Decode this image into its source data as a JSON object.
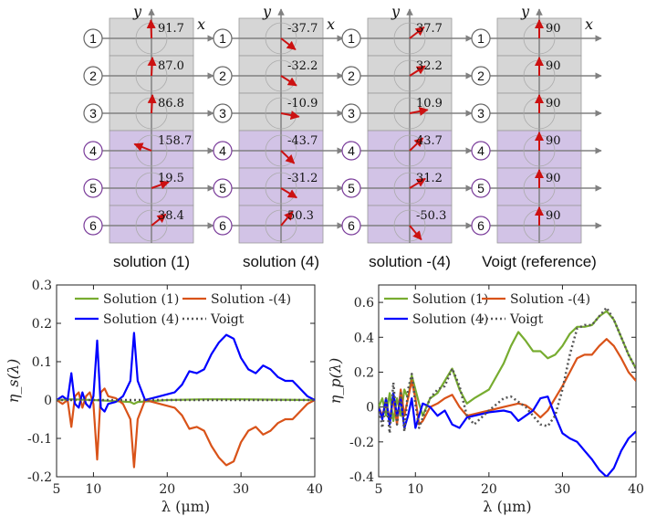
{
  "colors": {
    "gray_cell": "#d6d6d6",
    "purple_cell": "#d2c3e6",
    "arrow_red": "#cc1111",
    "axis_gray": "#808080",
    "circle_purple": "#7a3c9a",
    "green": "#77ac30",
    "orange": "#d95319",
    "blue": "#0000ff",
    "dotted": "#555555"
  },
  "top": {
    "axis_x": "x",
    "axis_y": "y",
    "columns": [
      {
        "caption": "solution (1)",
        "angles": [
          91.7,
          87.0,
          86.8,
          158.7,
          19.5,
          38.4
        ],
        "labels": [
          "91.7",
          "87.0",
          "86.8",
          "158.7",
          "19.5",
          "38.4"
        ],
        "show_x": true
      },
      {
        "caption": "solution (4)",
        "angles": [
          -37.7,
          -32.2,
          -10.9,
          -43.7,
          -31.2,
          50.3
        ],
        "labels": [
          "-37.7",
          "-32.2",
          "-10.9",
          "-43.7",
          "-31.2",
          "50.3"
        ],
        "show_x": true
      },
      {
        "caption": "solution -(4)",
        "angles": [
          37.7,
          32.2,
          10.9,
          43.7,
          31.2,
          -50.3
        ],
        "labels": [
          "37.7",
          "32.2",
          "10.9",
          "43.7",
          "31.2",
          "-50.3"
        ],
        "show_x": false
      },
      {
        "caption": "Voigt (reference)",
        "angles": [
          90,
          90,
          90,
          90,
          90,
          90
        ],
        "labels": [
          "90",
          "90",
          "90",
          "90",
          "90",
          "90"
        ],
        "show_x": true
      }
    ],
    "layer_numbers": [
      "1",
      "2",
      "3",
      "4",
      "5",
      "6"
    ]
  },
  "chart_data": [
    {
      "type": "line",
      "title": "",
      "xlabel": "λ (μm)",
      "ylabel": "η_s(λ)",
      "xlim": [
        5,
        40
      ],
      "ylim": [
        -0.2,
        0.3
      ],
      "xticks": [
        "5",
        "10",
        "20",
        "30",
        "40"
      ],
      "yticks": [
        "-0.2",
        "-0.1",
        "0",
        "0.1",
        "0.2",
        "0.3"
      ],
      "legend": [
        "Solution (1)",
        "Solution -(4)",
        "Solution (4)",
        "Voigt"
      ],
      "series": [
        {
          "name": "Solution (1)",
          "color": "#77ac30",
          "dash": "",
          "x": [
            5,
            7,
            10,
            12,
            15,
            15.5,
            16,
            20,
            25,
            30,
            35,
            40
          ],
          "y": [
            0,
            0.002,
            0,
            -0.002,
            -0.005,
            -0.01,
            -0.005,
            0,
            0.002,
            0.002,
            0.001,
            0
          ]
        },
        {
          "name": "Solution -(4)",
          "color": "#d95319",
          "dash": "",
          "x": [
            5,
            5.8,
            6.5,
            7,
            7.5,
            8,
            8.5,
            9,
            9.5,
            10,
            10.5,
            11,
            11.5,
            12,
            13,
            14,
            15,
            15.5,
            16,
            17,
            18,
            20,
            21,
            22,
            23,
            24,
            25,
            26,
            27,
            28,
            29,
            30,
            31,
            32,
            33,
            34,
            35,
            36,
            37,
            38,
            39,
            40
          ],
          "y": [
            0,
            -0.01,
            0,
            -0.07,
            0.01,
            0.02,
            -0.02,
            0.01,
            0.02,
            -0.01,
            -0.155,
            0.02,
            0.03,
            0.01,
            0.005,
            -0.01,
            -0.05,
            -0.175,
            -0.05,
            0,
            -0.005,
            -0.015,
            -0.02,
            -0.04,
            -0.075,
            -0.07,
            -0.08,
            -0.12,
            -0.15,
            -0.17,
            -0.16,
            -0.11,
            -0.08,
            -0.07,
            -0.09,
            -0.08,
            -0.06,
            -0.05,
            -0.05,
            -0.03,
            -0.01,
            0
          ]
        },
        {
          "name": "Solution (4)",
          "color": "#0000ff",
          "dash": "",
          "x": [
            5,
            5.8,
            6.5,
            7,
            7.5,
            8,
            8.5,
            9,
            9.5,
            10,
            10.5,
            11,
            11.5,
            12,
            13,
            14,
            15,
            15.5,
            16,
            17,
            18,
            20,
            21,
            22,
            23,
            24,
            25,
            26,
            27,
            28,
            29,
            30,
            31,
            32,
            33,
            34,
            35,
            36,
            37,
            38,
            39,
            40
          ],
          "y": [
            0,
            0.01,
            0,
            0.07,
            -0.01,
            -0.02,
            0.02,
            -0.01,
            -0.02,
            0.01,
            0.155,
            -0.02,
            -0.03,
            -0.01,
            -0.005,
            0.01,
            0.05,
            0.175,
            0.05,
            0,
            0.005,
            0.015,
            0.02,
            0.04,
            0.075,
            0.07,
            0.08,
            0.12,
            0.15,
            0.17,
            0.16,
            0.11,
            0.08,
            0.07,
            0.09,
            0.08,
            0.06,
            0.05,
            0.05,
            0.03,
            0.01,
            0
          ]
        },
        {
          "name": "Voigt",
          "color": "#555555",
          "dash": "2,3",
          "x": [
            5,
            40
          ],
          "y": [
            0,
            0
          ]
        }
      ]
    },
    {
      "type": "line",
      "title": "",
      "xlabel": "λ (μm)",
      "ylabel": "η_p(λ)",
      "xlim": [
        5,
        40
      ],
      "ylim": [
        -0.4,
        0.7
      ],
      "xticks": [
        "5",
        "10",
        "20",
        "30",
        "40"
      ],
      "yticks": [
        "-0.4",
        "-0.2",
        "0",
        "0.2",
        "0.4",
        "0.6"
      ],
      "legend": [
        "Solution (1)",
        "Solution -(4)",
        "Solution (4)",
        "Voigt"
      ],
      "series": [
        {
          "name": "Solution (1)",
          "color": "#77ac30",
          "dash": "",
          "x": [
            5,
            5.5,
            6,
            6.5,
            7,
            7.5,
            8,
            8.5,
            9,
            9.5,
            10,
            10.5,
            11,
            12,
            13,
            14,
            15,
            16,
            17,
            18,
            20,
            22,
            23,
            24,
            25,
            26,
            27,
            28,
            29,
            30,
            31,
            32,
            33,
            34,
            35,
            36,
            37,
            38,
            39,
            40
          ],
          "y": [
            0,
            0.05,
            -0.05,
            0.08,
            -0.08,
            0.05,
            -0.05,
            0.1,
            0.05,
            0.18,
            0.1,
            0.02,
            -0.05,
            0.05,
            0.08,
            0.15,
            0.22,
            0.1,
            0.02,
            0.05,
            0.1,
            0.25,
            0.35,
            0.43,
            0.38,
            0.32,
            0.32,
            0.28,
            0.3,
            0.35,
            0.42,
            0.46,
            0.46,
            0.47,
            0.52,
            0.55,
            0.5,
            0.4,
            0.3,
            0.22
          ]
        },
        {
          "name": "Solution -(4)",
          "color": "#d95319",
          "dash": "",
          "x": [
            5,
            5.5,
            6,
            6.5,
            7,
            7.5,
            8,
            8.5,
            9,
            9.5,
            10,
            10.5,
            11,
            12,
            13,
            14,
            15,
            16,
            17,
            18,
            20,
            22,
            23,
            24,
            25,
            26,
            27,
            28,
            29,
            30,
            31,
            32,
            33,
            34,
            35,
            36,
            37,
            38,
            39,
            40
          ],
          "y": [
            0,
            -0.05,
            0.03,
            -0.07,
            0.05,
            -0.1,
            0.1,
            -0.05,
            0.05,
            0.15,
            0.05,
            -0.1,
            -0.08,
            0,
            0.02,
            0.05,
            0.07,
            0,
            -0.05,
            -0.04,
            -0.02,
            0,
            0.01,
            0.02,
            0.01,
            -0.02,
            -0.06,
            -0.02,
            0.05,
            0.12,
            0.2,
            0.28,
            0.3,
            0.3,
            0.35,
            0.39,
            0.35,
            0.28,
            0.2,
            0.15
          ]
        },
        {
          "name": "Solution (4)",
          "color": "#0000ff",
          "dash": "",
          "x": [
            5,
            5.5,
            6,
            6.5,
            7,
            7.5,
            8,
            8.5,
            9,
            9.5,
            10,
            10.5,
            11,
            12,
            13,
            14,
            15,
            16,
            17,
            18,
            20,
            22,
            23,
            24,
            25,
            26,
            27,
            28,
            29,
            30,
            31,
            32,
            33,
            34,
            35,
            36,
            37,
            38,
            39,
            40
          ],
          "y": [
            0,
            -0.07,
            0.05,
            -0.1,
            0.08,
            -0.05,
            0.05,
            -0.12,
            -0.05,
            0.05,
            -0.12,
            -0.05,
            0.02,
            0,
            -0.05,
            -0.02,
            -0.1,
            -0.12,
            -0.06,
            -0.05,
            -0.03,
            -0.02,
            -0.03,
            -0.08,
            -0.05,
            -0.02,
            0.05,
            0.06,
            -0.05,
            -0.15,
            -0.18,
            -0.2,
            -0.25,
            -0.3,
            -0.36,
            -0.4,
            -0.35,
            -0.25,
            -0.18,
            -0.14
          ]
        },
        {
          "name": "Voigt",
          "color": "#555555",
          "dash": "2,3",
          "x": [
            5,
            5.5,
            6,
            6.5,
            7,
            7.5,
            8,
            8.5,
            9,
            9.5,
            10,
            10.5,
            11,
            12,
            13,
            14,
            15,
            16,
            17,
            18,
            20,
            22,
            23,
            24,
            25,
            26,
            27,
            28,
            29,
            30,
            31,
            32,
            33,
            34,
            35,
            36,
            37,
            38,
            39,
            40
          ],
          "y": [
            0,
            -0.12,
            0.05,
            -0.15,
            0.14,
            -0.1,
            0.08,
            -0.14,
            0.1,
            0.19,
            0.02,
            -0.12,
            -0.06,
            0.05,
            0.1,
            0.12,
            0.22,
            0.12,
            -0.05,
            -0.1,
            -0.02,
            0.05,
            0.06,
            0.03,
            0,
            -0.05,
            -0.1,
            -0.11,
            -0.05,
            0.1,
            0.3,
            0.45,
            0.47,
            0.47,
            0.52,
            0.57,
            0.5,
            0.4,
            0.3,
            0.22
          ]
        }
      ]
    }
  ]
}
